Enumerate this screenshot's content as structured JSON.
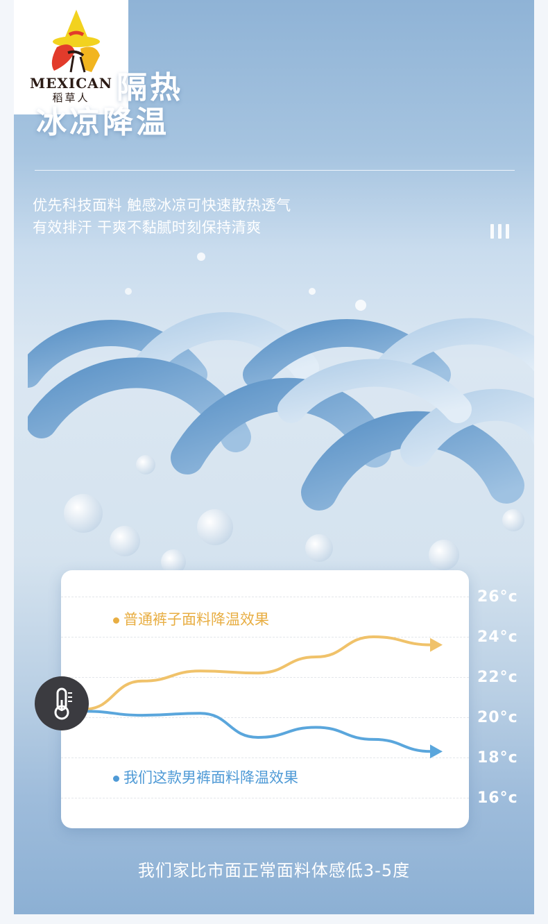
{
  "brand": {
    "name_en": "MEXICAN",
    "name_cn": "稻草人"
  },
  "headline": {
    "line1": "隔热",
    "line2": "冰凉降温"
  },
  "subtitle": {
    "line1": "优先科技面料 触感冰凉可快速散热透气",
    "line2": "有效排汗 干爽不黏腻时刻保持清爽"
  },
  "chart_data": {
    "type": "line",
    "y_unit": "°c",
    "ylim": [
      16,
      26
    ],
    "y_ticks": [
      "26°c",
      "24°c",
      "22°c",
      "20°c",
      "18°c",
      "16°c"
    ],
    "x": [
      0,
      1,
      2,
      3,
      4,
      5,
      6
    ],
    "series": [
      {
        "name": "普通裤子面料降温效果",
        "color": "#f0c26a",
        "values": [
          20.4,
          21.8,
          22.3,
          22.2,
          23.0,
          24.0,
          23.6
        ]
      },
      {
        "name": "我们这款男裤面料降温效果",
        "color": "#5aa6dc",
        "values": [
          20.3,
          20.1,
          20.2,
          19.0,
          19.5,
          18.9,
          18.3
        ]
      }
    ]
  },
  "footer": "我们家比市面正常面料体感低3-5度",
  "icons": {
    "thermometer": "thermometer-icon"
  }
}
